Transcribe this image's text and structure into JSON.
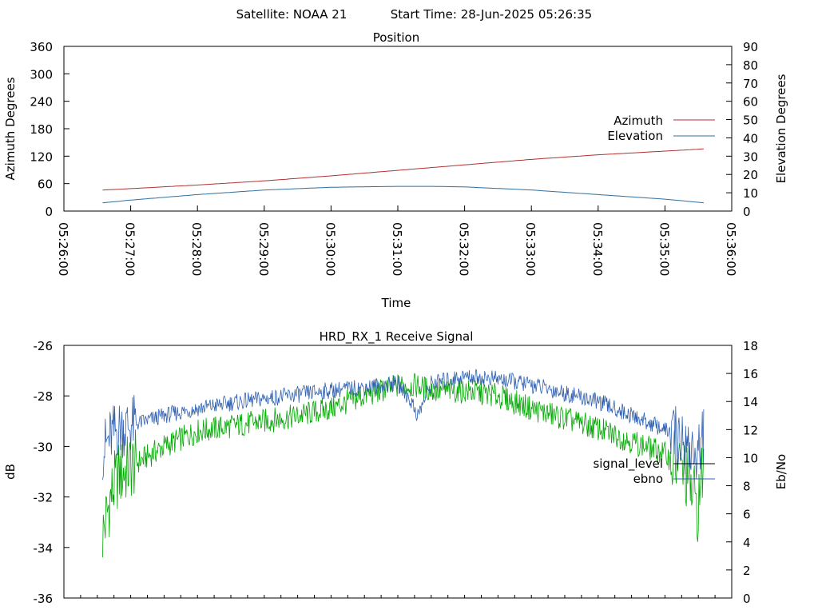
{
  "header": {
    "satellite": "Satellite: NOAA 21",
    "start_time": "Start Time: 28-Jun-2025 05:26:35"
  },
  "colors": {
    "azimuth": "#b03030",
    "elevation": "#2f6f9f",
    "signal_level": "#00a800",
    "ebno": "#3060b0",
    "axis": "#000000"
  },
  "chart_data": [
    {
      "type": "line",
      "title": "Position",
      "xlabel": "Time",
      "ylabel": "Azimuth Degrees",
      "y2label": "Elevation Degrees",
      "x_ticks": [
        "05:26:00",
        "05:27:00",
        "05:28:00",
        "05:29:00",
        "05:30:00",
        "05:31:00",
        "05:32:00",
        "05:33:00",
        "05:34:00",
        "05:35:00",
        "05:36:00"
      ],
      "xlim_minutes": [
        0,
        10
      ],
      "ylim": [
        0,
        360
      ],
      "y_ticks": [
        0,
        60,
        120,
        180,
        240,
        300,
        360
      ],
      "y2lim": [
        0,
        90
      ],
      "y2_ticks": [
        0,
        10,
        20,
        30,
        40,
        50,
        60,
        70,
        80,
        90
      ],
      "legend_position": "right",
      "series": [
        {
          "name": "Azimuth",
          "axis": "left",
          "color_key": "azimuth",
          "x": [
            0.58,
            1,
            2,
            3,
            4,
            5,
            6,
            7,
            8,
            9,
            9.58
          ],
          "values": [
            46,
            49,
            57,
            66,
            77,
            89,
            101,
            113,
            123,
            131,
            136
          ]
        },
        {
          "name": "Elevation",
          "axis": "right",
          "color_key": "elevation",
          "x": [
            0.58,
            1,
            2,
            3,
            4,
            5,
            5.5,
            6,
            7,
            8,
            9,
            9.58
          ],
          "values": [
            4.5,
            6,
            9,
            11.5,
            13,
            13.5,
            13.5,
            13.2,
            11.5,
            9,
            6.5,
            4.5
          ]
        }
      ]
    },
    {
      "type": "line",
      "title": "HRD_RX_1 Receive Signal",
      "ylabel": "dB",
      "y2label": "Eb/No",
      "ylim": [
        -36,
        -26
      ],
      "y_ticks": [
        -26,
        -28,
        -30,
        -32,
        -34,
        -36
      ],
      "y2lim": [
        0,
        18
      ],
      "y2_ticks": [
        0,
        2,
        4,
        6,
        8,
        10,
        12,
        14,
        16,
        18
      ],
      "xlim_minutes": [
        0,
        10
      ],
      "legend_position": "right",
      "series": [
        {
          "name": "signal_level",
          "axis": "left",
          "color_key": "signal_level",
          "x": [
            0.58,
            0.7,
            0.8,
            1,
            1.5,
            2,
            2.5,
            3,
            3.5,
            4,
            4.5,
            5,
            5.3,
            5.5,
            6,
            6.5,
            7,
            7.5,
            8,
            8.5,
            9,
            9.3,
            9.5,
            9.58
          ],
          "values": [
            -33.5,
            -32.0,
            -31.2,
            -30.8,
            -30.0,
            -29.4,
            -29.2,
            -29.0,
            -28.8,
            -28.5,
            -28.0,
            -27.6,
            -27.6,
            -27.8,
            -27.8,
            -28.0,
            -28.5,
            -28.9,
            -29.3,
            -29.8,
            -30.3,
            -31.0,
            -32.5,
            -30.5
          ]
        },
        {
          "name": "ebno",
          "axis": "right",
          "color_key": "ebno",
          "x": [
            0.58,
            0.7,
            0.8,
            1,
            1.5,
            2,
            2.5,
            3,
            3.5,
            4,
            4.5,
            5,
            5.2,
            5.3,
            5.5,
            6,
            6.5,
            7,
            7.5,
            8,
            8.5,
            9,
            9.3,
            9.5,
            9.58
          ],
          "values": [
            10.5,
            11.5,
            12.0,
            12.3,
            13.0,
            13.5,
            13.9,
            14.2,
            14.5,
            14.8,
            15.0,
            15.3,
            14.0,
            13.0,
            15.3,
            15.8,
            15.6,
            15.2,
            14.6,
            14.0,
            13.0,
            12.0,
            11.0,
            10.0,
            12.0
          ]
        }
      ]
    }
  ]
}
